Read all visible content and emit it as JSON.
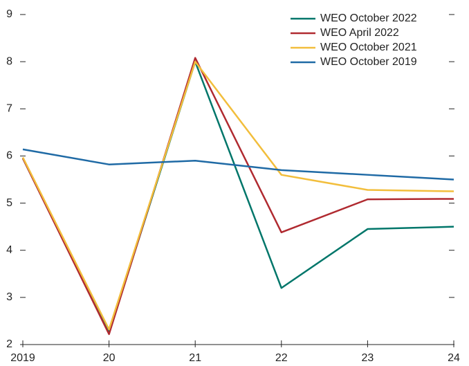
{
  "chart_data": {
    "type": "line",
    "categories": [
      "2019",
      "20",
      "21",
      "22",
      "23",
      "24"
    ],
    "series": [
      {
        "name": "WEO October 2022",
        "color": "#00766a",
        "values": [
          5.95,
          2.25,
          8.0,
          3.2,
          4.45,
          4.5
        ]
      },
      {
        "name": "WEO April 2022",
        "color": "#b02a30",
        "values": [
          5.95,
          2.22,
          8.08,
          4.38,
          5.08,
          5.09
        ]
      },
      {
        "name": "WEO October 2021",
        "color": "#f2be3c",
        "values": [
          5.97,
          2.32,
          8.0,
          5.6,
          5.28,
          5.25
        ]
      },
      {
        "name": "WEO October 2019",
        "color": "#1f6aa5",
        "values": [
          6.14,
          5.82,
          5.9,
          5.7,
          5.6,
          5.5
        ]
      }
    ],
    "ylim": [
      2,
      9
    ],
    "yticks": [
      2,
      3,
      4,
      5,
      6,
      7,
      8,
      9
    ],
    "legend": "upper right"
  }
}
